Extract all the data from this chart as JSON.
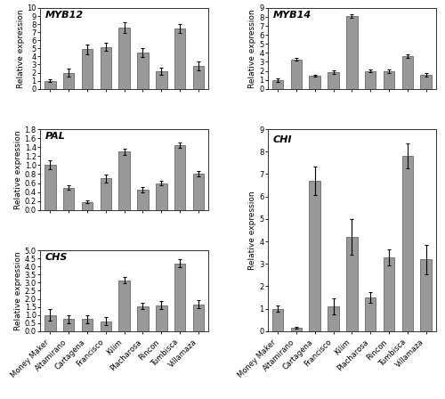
{
  "categories": [
    "Money Maker",
    "Altamirano",
    "Cartagena",
    "Francisco",
    "Kilim",
    "Placharosa",
    "Rincon",
    "Tumbisca",
    "Villamaza"
  ],
  "MYB12": {
    "values": [
      1.0,
      2.0,
      4.9,
      5.2,
      7.6,
      4.5,
      2.2,
      7.5,
      2.8
    ],
    "errors": [
      0.15,
      0.45,
      0.6,
      0.55,
      0.65,
      0.55,
      0.45,
      0.55,
      0.55
    ],
    "ylim": [
      0.0,
      10.0
    ],
    "yticks": [
      0.0,
      1.0,
      2.0,
      3.0,
      4.0,
      5.0,
      6.0,
      7.0,
      8.0,
      9.0,
      10.0
    ],
    "ylabel": "Relative expression",
    "title": "MYB12"
  },
  "MYB14": {
    "values": [
      1.0,
      3.25,
      1.45,
      1.9,
      8.1,
      2.0,
      2.0,
      3.65,
      1.6
    ],
    "errors": [
      0.2,
      0.15,
      0.1,
      0.2,
      0.2,
      0.15,
      0.2,
      0.2,
      0.2
    ],
    "ylim": [
      0.0,
      9.0
    ],
    "yticks": [
      0.0,
      1.0,
      2.0,
      3.0,
      4.0,
      5.0,
      6.0,
      7.0,
      8.0,
      9.0
    ],
    "ylabel": "Relative expression",
    "title": "MYB14"
  },
  "PAL": {
    "values": [
      1.0,
      0.5,
      0.18,
      0.7,
      1.3,
      0.45,
      0.6,
      1.45,
      0.8
    ],
    "errors": [
      0.1,
      0.05,
      0.03,
      0.08,
      0.07,
      0.06,
      0.05,
      0.06,
      0.06
    ],
    "ylim": [
      0.0,
      1.8
    ],
    "yticks": [
      0.0,
      0.2,
      0.4,
      0.6,
      0.8,
      1.0,
      1.2,
      1.4,
      1.6,
      1.8
    ],
    "ylabel": "Relative expression",
    "title": "PAL"
  },
  "CHI": {
    "values": [
      1.0,
      0.15,
      6.7,
      1.1,
      4.2,
      1.5,
      3.3,
      7.8,
      3.2
    ],
    "errors": [
      0.15,
      0.05,
      0.65,
      0.35,
      0.8,
      0.25,
      0.35,
      0.55,
      0.65
    ],
    "ylim": [
      0.0,
      9.0
    ],
    "yticks": [
      0.0,
      1.0,
      2.0,
      3.0,
      4.0,
      5.0,
      6.0,
      7.0,
      8.0,
      9.0
    ],
    "ylabel": "Relative expression",
    "title": "CHI"
  },
  "CHS": {
    "values": [
      1.0,
      0.75,
      0.75,
      0.6,
      3.15,
      1.55,
      1.6,
      4.2,
      1.65
    ],
    "errors": [
      0.35,
      0.25,
      0.25,
      0.25,
      0.2,
      0.2,
      0.25,
      0.25,
      0.25
    ],
    "ylim": [
      0.0,
      5.0
    ],
    "yticks": [
      0.0,
      0.5,
      1.0,
      1.5,
      2.0,
      2.5,
      3.0,
      3.5,
      4.0,
      4.5,
      5.0
    ],
    "ylabel": "Relative expression",
    "title": "CHS"
  },
  "bar_color": "#999999",
  "bar_edgecolor": "#555555",
  "error_color": "black",
  "bar_width": 0.6,
  "title_fontstyle": "italic",
  "title_fontsize": 8,
  "tick_fontsize": 6,
  "ylabel_fontsize": 6.5,
  "background_color": "#ffffff"
}
